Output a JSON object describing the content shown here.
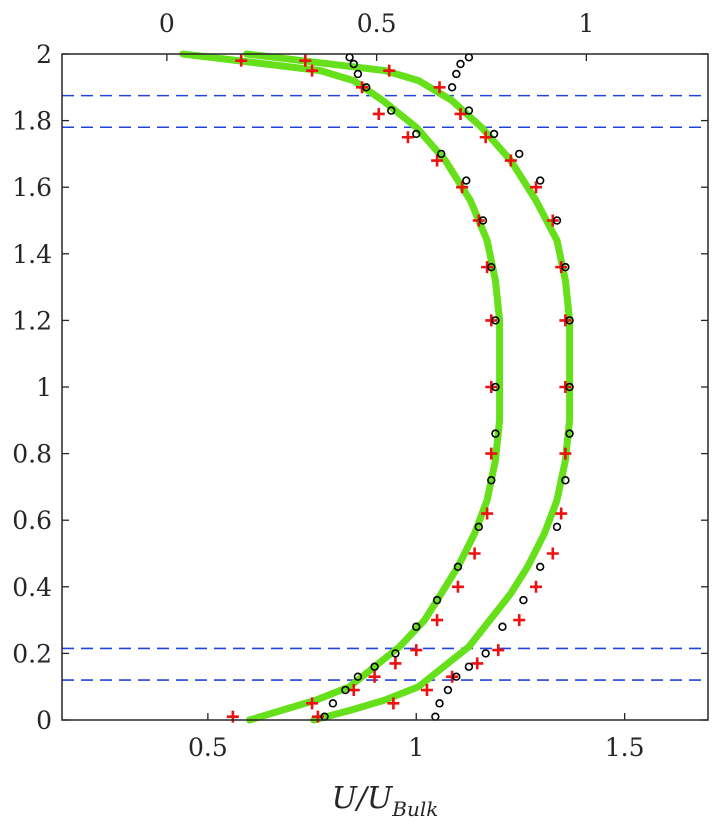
{
  "chart_data": {
    "type": "line",
    "title": "",
    "xlabel": "U/U",
    "xlabel_subscript": "Bulk",
    "ylabel": "",
    "xlim": [
      0.15,
      1.7
    ],
    "ylim": [
      0,
      2
    ],
    "top_xlim": [
      -0.25,
      1.29
    ],
    "yticks": [
      0,
      0.2,
      0.4,
      0.6,
      0.8,
      1,
      1.2,
      1.4,
      1.6,
      1.8,
      2
    ],
    "ytick_labels": [
      "0",
      "0.2",
      "0.4",
      "0.6",
      "0.8",
      "1",
      "1.2",
      "1.4",
      "1.6",
      "1.8",
      "2"
    ],
    "xticks": [
      0.5,
      1,
      1.5
    ],
    "xtick_labels": [
      "0.5",
      "1",
      "1.5"
    ],
    "top_xticks": [
      0,
      0.5,
      1
    ],
    "top_xtick_labels": [
      "0",
      "0.5",
      "1"
    ],
    "grid": false,
    "colors": {
      "line": "#66e01a",
      "plus_marker": "#ee1111",
      "circle_marker": "#000000",
      "reference_line": "#2244dd",
      "axis": "#262626"
    },
    "reference_lines_y": [
      0.12,
      0.215,
      1.78,
      1.875
    ],
    "series": [
      {
        "axis": "bottom",
        "style": "line",
        "x": [
          0.6,
          0.68,
          0.76,
          0.84,
          0.9,
          0.96,
          1.02,
          1.06,
          1.1,
          1.14,
          1.17,
          1.19,
          1.2,
          1.2,
          1.2,
          1.19,
          1.17,
          1.13,
          1.07,
          1.0,
          0.92,
          0.85,
          0.77,
          0.44
        ],
        "y": [
          0.0,
          0.03,
          0.06,
          0.1,
          0.16,
          0.22,
          0.3,
          0.38,
          0.46,
          0.56,
          0.66,
          0.78,
          0.9,
          1.02,
          1.2,
          1.32,
          1.44,
          1.56,
          1.68,
          1.78,
          1.86,
          1.92,
          1.95,
          2.0
        ]
      },
      {
        "axis": "bottom",
        "style": "plus",
        "x": [
          0.56,
          0.75,
          0.85,
          0.9,
          0.95,
          1.0,
          1.05,
          1.1,
          1.14,
          1.17,
          1.18,
          1.18,
          1.18,
          1.17,
          1.15,
          1.11,
          1.05,
          0.98,
          0.91,
          0.87,
          0.75,
          0.58
        ],
        "y": [
          0.01,
          0.05,
          0.09,
          0.13,
          0.17,
          0.21,
          0.3,
          0.4,
          0.5,
          0.62,
          0.8,
          1.0,
          1.2,
          1.36,
          1.5,
          1.6,
          1.68,
          1.75,
          1.82,
          1.9,
          1.95,
          1.98
        ]
      },
      {
        "axis": "bottom",
        "style": "circle",
        "x": [
          0.78,
          0.8,
          0.83,
          0.86,
          0.9,
          0.95,
          1.0,
          1.05,
          1.1,
          1.15,
          1.18,
          1.19,
          1.19,
          1.19,
          1.18,
          1.16,
          1.12,
          1.06,
          1.0,
          0.94,
          0.88,
          0.86,
          0.85,
          0.84
        ],
        "y": [
          0.01,
          0.05,
          0.09,
          0.13,
          0.16,
          0.2,
          0.28,
          0.36,
          0.46,
          0.58,
          0.72,
          0.86,
          1.0,
          1.2,
          1.36,
          1.5,
          1.62,
          1.7,
          1.76,
          1.83,
          1.9,
          1.94,
          1.97,
          1.99
        ]
      },
      {
        "axis": "top",
        "style": "line",
        "x": [
          0.35,
          0.44,
          0.52,
          0.6,
          0.66,
          0.72,
          0.77,
          0.82,
          0.86,
          0.9,
          0.93,
          0.95,
          0.96,
          0.96,
          0.96,
          0.95,
          0.93,
          0.88,
          0.82,
          0.75,
          0.68,
          0.6,
          0.52,
          0.19
        ],
        "y": [
          0.0,
          0.03,
          0.06,
          0.1,
          0.16,
          0.22,
          0.3,
          0.38,
          0.46,
          0.56,
          0.66,
          0.78,
          0.9,
          1.02,
          1.2,
          1.32,
          1.44,
          1.56,
          1.68,
          1.78,
          1.86,
          1.92,
          1.95,
          2.0
        ]
      },
      {
        "axis": "top",
        "style": "plus",
        "x": [
          0.36,
          0.54,
          0.62,
          0.68,
          0.74,
          0.79,
          0.84,
          0.88,
          0.92,
          0.94,
          0.95,
          0.95,
          0.95,
          0.94,
          0.92,
          0.88,
          0.82,
          0.76,
          0.7,
          0.65,
          0.53,
          0.33
        ],
        "y": [
          0.01,
          0.05,
          0.09,
          0.13,
          0.17,
          0.21,
          0.3,
          0.4,
          0.5,
          0.62,
          0.8,
          1.0,
          1.2,
          1.36,
          1.5,
          1.6,
          1.68,
          1.75,
          1.82,
          1.9,
          1.95,
          1.98
        ]
      },
      {
        "axis": "top",
        "style": "circle",
        "x": [
          0.64,
          0.65,
          0.67,
          0.69,
          0.72,
          0.76,
          0.8,
          0.85,
          0.89,
          0.93,
          0.95,
          0.96,
          0.96,
          0.96,
          0.95,
          0.93,
          0.89,
          0.84,
          0.78,
          0.72,
          0.68,
          0.69,
          0.7,
          0.72
        ],
        "y": [
          0.01,
          0.05,
          0.09,
          0.13,
          0.16,
          0.2,
          0.28,
          0.36,
          0.46,
          0.58,
          0.72,
          0.86,
          1.0,
          1.2,
          1.36,
          1.5,
          1.62,
          1.7,
          1.76,
          1.83,
          1.9,
          1.94,
          1.97,
          1.99
        ]
      }
    ]
  }
}
